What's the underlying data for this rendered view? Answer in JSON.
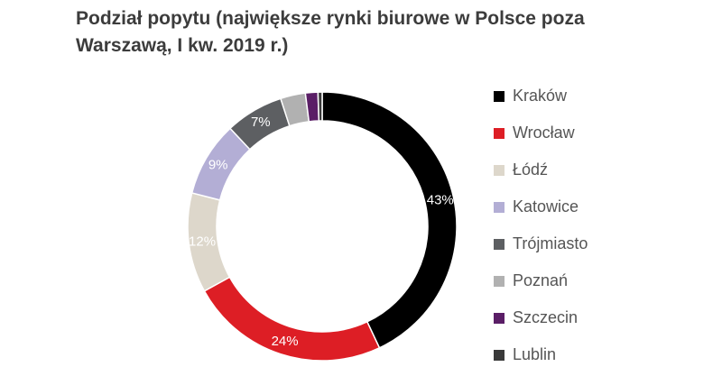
{
  "chart_data": {
    "type": "pie",
    "title": "Podział popytu (największe rynki biurowe w Polsce poza Warszawą, I kw. 2019 r.)",
    "categories": [
      "Kraków",
      "Wrocław",
      "Łódź",
      "Katowice",
      "Trójmiasto",
      "Poznań",
      "Szczecin",
      "Lublin"
    ],
    "values": [
      43,
      24,
      12,
      9,
      7,
      3,
      1.5,
      0.5
    ],
    "data_labels": [
      "43%",
      "24%",
      "12%",
      "9%",
      "7%",
      "",
      "",
      ""
    ],
    "colors": [
      "#000000",
      "#dd1e25",
      "#ddd7cb",
      "#b3aed5",
      "#5d5f62",
      "#b1b1b1",
      "#5a1e66",
      "#3a3a3a"
    ],
    "label_colors": [
      "#ffffff",
      "#ffffff",
      "#ffffff",
      "#ffffff",
      "#ffffff",
      "#ffffff",
      "#ffffff",
      "#ffffff"
    ],
    "legend_position": "right",
    "hole": true
  }
}
